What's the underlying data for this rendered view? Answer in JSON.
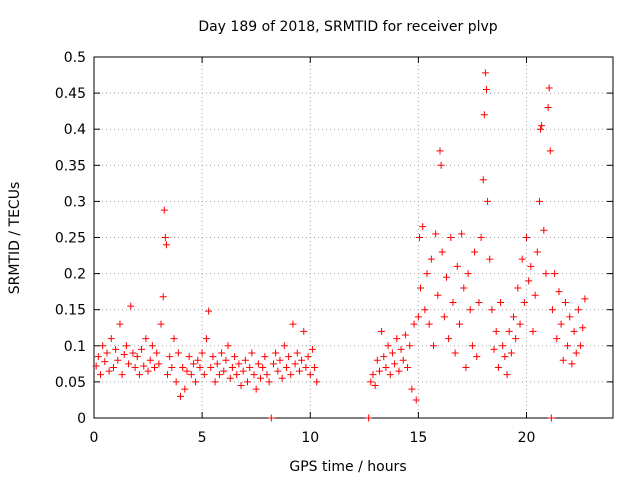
{
  "chart_data": {
    "type": "scatter",
    "title": "Day 189 of 2018, SRMTID for receiver plvp",
    "xlabel": "GPS time / hours",
    "ylabel": "SRMTID / TECUs",
    "xlim": [
      0,
      24
    ],
    "ylim": [
      0,
      0.5
    ],
    "xticks": [
      "0",
      "5",
      "10",
      "15",
      "20"
    ],
    "xtick_values": [
      0,
      5,
      10,
      15,
      20
    ],
    "yticks": [
      "0",
      "0.05",
      "0.1",
      "0.15",
      "0.2",
      "0.25",
      "0.3",
      "0.35",
      "0.4",
      "0.45",
      "0.5"
    ],
    "ytick_values": [
      0,
      0.05,
      0.1,
      0.15,
      0.2,
      0.25,
      0.3,
      0.35,
      0.4,
      0.45,
      0.5
    ],
    "grid": true,
    "marker": "+",
    "marker_color": "#ff0000",
    "series": [
      {
        "name": "SRMTID",
        "points": [
          [
            0.1,
            0.072
          ],
          [
            0.2,
            0.085
          ],
          [
            0.3,
            0.06
          ],
          [
            0.4,
            0.1
          ],
          [
            0.5,
            0.078
          ],
          [
            0.6,
            0.09
          ],
          [
            0.7,
            0.065
          ],
          [
            0.8,
            0.11
          ],
          [
            0.9,
            0.07
          ],
          [
            1.0,
            0.095
          ],
          [
            1.1,
            0.08
          ],
          [
            1.2,
            0.13
          ],
          [
            1.3,
            0.06
          ],
          [
            1.4,
            0.088
          ],
          [
            1.5,
            0.1
          ],
          [
            1.6,
            0.075
          ],
          [
            1.7,
            0.155
          ],
          [
            1.8,
            0.09
          ],
          [
            1.9,
            0.07
          ],
          [
            2.0,
            0.085
          ],
          [
            2.1,
            0.06
          ],
          [
            2.2,
            0.095
          ],
          [
            2.3,
            0.072
          ],
          [
            2.4,
            0.11
          ],
          [
            2.5,
            0.065
          ],
          [
            2.6,
            0.08
          ],
          [
            2.7,
            0.1
          ],
          [
            2.8,
            0.07
          ],
          [
            2.9,
            0.09
          ],
          [
            3.0,
            0.075
          ],
          [
            3.1,
            0.13
          ],
          [
            3.2,
            0.168
          ],
          [
            3.25,
            0.288
          ],
          [
            3.3,
            0.25
          ],
          [
            3.35,
            0.24
          ],
          [
            3.4,
            0.06
          ],
          [
            3.5,
            0.085
          ],
          [
            3.6,
            0.07
          ],
          [
            3.7,
            0.11
          ],
          [
            3.8,
            0.05
          ],
          [
            3.9,
            0.09
          ],
          [
            4.0,
            0.03
          ],
          [
            4.1,
            0.07
          ],
          [
            4.2,
            0.04
          ],
          [
            4.3,
            0.065
          ],
          [
            4.4,
            0.085
          ],
          [
            4.5,
            0.06
          ],
          [
            4.6,
            0.075
          ],
          [
            4.7,
            0.05
          ],
          [
            4.8,
            0.08
          ],
          [
            4.9,
            0.07
          ],
          [
            5.0,
            0.09
          ],
          [
            5.1,
            0.06
          ],
          [
            5.2,
            0.11
          ],
          [
            5.3,
            0.148
          ],
          [
            5.4,
            0.07
          ],
          [
            5.5,
            0.085
          ],
          [
            5.6,
            0.05
          ],
          [
            5.7,
            0.075
          ],
          [
            5.8,
            0.06
          ],
          [
            5.9,
            0.09
          ],
          [
            6.0,
            0.065
          ],
          [
            6.1,
            0.08
          ],
          [
            6.2,
            0.1
          ],
          [
            6.3,
            0.055
          ],
          [
            6.4,
            0.07
          ],
          [
            6.5,
            0.085
          ],
          [
            6.6,
            0.06
          ],
          [
            6.7,
            0.075
          ],
          [
            6.8,
            0.045
          ],
          [
            6.9,
            0.065
          ],
          [
            7.0,
            0.08
          ],
          [
            7.1,
            0.05
          ],
          [
            7.2,
            0.07
          ],
          [
            7.3,
            0.09
          ],
          [
            7.4,
            0.06
          ],
          [
            7.5,
            0.04
          ],
          [
            7.6,
            0.075
          ],
          [
            7.7,
            0.055
          ],
          [
            7.8,
            0.07
          ],
          [
            7.9,
            0.085
          ],
          [
            8.0,
            0.06
          ],
          [
            8.1,
            0.05
          ],
          [
            8.2,
            0.0
          ],
          [
            8.3,
            0.075
          ],
          [
            8.4,
            0.09
          ],
          [
            8.5,
            0.065
          ],
          [
            8.6,
            0.08
          ],
          [
            8.7,
            0.055
          ],
          [
            8.8,
            0.1
          ],
          [
            8.9,
            0.07
          ],
          [
            9.0,
            0.085
          ],
          [
            9.1,
            0.06
          ],
          [
            9.2,
            0.13
          ],
          [
            9.3,
            0.075
          ],
          [
            9.4,
            0.09
          ],
          [
            9.5,
            0.065
          ],
          [
            9.6,
            0.08
          ],
          [
            9.7,
            0.12
          ],
          [
            9.8,
            0.07
          ],
          [
            9.9,
            0.085
          ],
          [
            10.0,
            0.06
          ],
          [
            10.1,
            0.095
          ],
          [
            10.2,
            0.07
          ],
          [
            10.3,
            0.05
          ],
          [
            12.7,
            0.0
          ],
          [
            12.8,
            0.05
          ],
          [
            12.9,
            0.06
          ],
          [
            13.0,
            0.045
          ],
          [
            13.1,
            0.08
          ],
          [
            13.2,
            0.065
          ],
          [
            13.3,
            0.12
          ],
          [
            13.4,
            0.085
          ],
          [
            13.5,
            0.07
          ],
          [
            13.6,
            0.1
          ],
          [
            13.7,
            0.06
          ],
          [
            13.8,
            0.09
          ],
          [
            13.9,
            0.075
          ],
          [
            14.0,
            0.11
          ],
          [
            14.1,
            0.065
          ],
          [
            14.2,
            0.095
          ],
          [
            14.3,
            0.08
          ],
          [
            14.4,
            0.115
          ],
          [
            14.5,
            0.07
          ],
          [
            14.6,
            0.1
          ],
          [
            14.7,
            0.04
          ],
          [
            14.8,
            0.13
          ],
          [
            14.9,
            0.025
          ],
          [
            15.0,
            0.14
          ],
          [
            15.05,
            0.25
          ],
          [
            15.1,
            0.18
          ],
          [
            15.2,
            0.265
          ],
          [
            15.3,
            0.15
          ],
          [
            15.4,
            0.2
          ],
          [
            15.5,
            0.13
          ],
          [
            15.6,
            0.22
          ],
          [
            15.7,
            0.1
          ],
          [
            15.8,
            0.255
          ],
          [
            15.9,
            0.17
          ],
          [
            16.0,
            0.37
          ],
          [
            16.05,
            0.35
          ],
          [
            16.1,
            0.23
          ],
          [
            16.2,
            0.14
          ],
          [
            16.3,
            0.195
          ],
          [
            16.4,
            0.11
          ],
          [
            16.5,
            0.25
          ],
          [
            16.6,
            0.16
          ],
          [
            16.7,
            0.09
          ],
          [
            16.8,
            0.21
          ],
          [
            16.9,
            0.13
          ],
          [
            17.0,
            0.255
          ],
          [
            17.1,
            0.18
          ],
          [
            17.2,
            0.07
          ],
          [
            17.3,
            0.2
          ],
          [
            17.4,
            0.15
          ],
          [
            17.5,
            0.1
          ],
          [
            17.6,
            0.23
          ],
          [
            17.7,
            0.085
          ],
          [
            17.8,
            0.16
          ],
          [
            17.9,
            0.25
          ],
          [
            18.0,
            0.33
          ],
          [
            18.05,
            0.42
          ],
          [
            18.1,
            0.478
          ],
          [
            18.15,
            0.455
          ],
          [
            18.2,
            0.3
          ],
          [
            18.3,
            0.22
          ],
          [
            18.4,
            0.15
          ],
          [
            18.5,
            0.095
          ],
          [
            18.6,
            0.12
          ],
          [
            18.7,
            0.07
          ],
          [
            18.8,
            0.16
          ],
          [
            18.9,
            0.1
          ],
          [
            19.0,
            0.085
          ],
          [
            19.1,
            0.06
          ],
          [
            19.2,
            0.12
          ],
          [
            19.3,
            0.09
          ],
          [
            19.4,
            0.14
          ],
          [
            19.5,
            0.11
          ],
          [
            19.6,
            0.18
          ],
          [
            19.7,
            0.13
          ],
          [
            19.8,
            0.22
          ],
          [
            19.9,
            0.16
          ],
          [
            20.0,
            0.25
          ],
          [
            20.1,
            0.19
          ],
          [
            20.2,
            0.21
          ],
          [
            20.3,
            0.12
          ],
          [
            20.4,
            0.17
          ],
          [
            20.5,
            0.23
          ],
          [
            20.6,
            0.3
          ],
          [
            20.65,
            0.4
          ],
          [
            20.7,
            0.405
          ],
          [
            20.8,
            0.26
          ],
          [
            20.9,
            0.2
          ],
          [
            21.0,
            0.43
          ],
          [
            21.05,
            0.457
          ],
          [
            21.1,
            0.37
          ],
          [
            21.15,
            0.0
          ],
          [
            21.2,
            0.15
          ],
          [
            21.3,
            0.2
          ],
          [
            21.4,
            0.11
          ],
          [
            21.5,
            0.175
          ],
          [
            21.6,
            0.13
          ],
          [
            21.7,
            0.08
          ],
          [
            21.8,
            0.16
          ],
          [
            21.9,
            0.1
          ],
          [
            22.0,
            0.14
          ],
          [
            22.1,
            0.075
          ],
          [
            22.2,
            0.12
          ],
          [
            22.3,
            0.09
          ],
          [
            22.4,
            0.15
          ],
          [
            22.5,
            0.1
          ],
          [
            22.6,
            0.125
          ],
          [
            22.7,
            0.165
          ]
        ]
      }
    ]
  }
}
